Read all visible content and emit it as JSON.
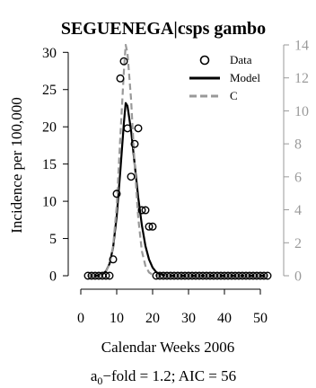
{
  "chart_data": {
    "type": "line",
    "title": "SEGUENEGA|csps gambo",
    "xlabel": "Calendar Weeks 2006",
    "ylabel": "Incidence per 100,000",
    "xlim": [
      0,
      53
    ],
    "ylim": [
      0,
      31
    ],
    "y2lim": [
      0,
      14
    ],
    "x_ticks": [
      0,
      10,
      20,
      30,
      40,
      50
    ],
    "y_ticks": [
      0,
      5,
      10,
      15,
      20,
      25,
      30
    ],
    "y2_ticks": [
      0,
      2,
      4,
      6,
      8,
      10,
      12,
      14
    ],
    "legend": {
      "position": "top-right",
      "entries": [
        "Data",
        "Model",
        "C"
      ]
    },
    "annotation": {
      "prefix": "a",
      "subscript": "0",
      "text": "−fold = 1.2; AIC = 56"
    },
    "series": [
      {
        "name": "Data",
        "style": "points",
        "color": "#000000",
        "x": [
          2,
          3,
          4,
          5,
          6,
          7,
          8,
          9,
          10,
          11,
          12,
          13,
          14,
          15,
          16,
          17,
          18,
          19,
          20,
          21,
          22,
          23,
          24,
          25,
          26,
          27,
          28,
          29,
          30,
          31,
          32,
          33,
          34,
          35,
          36,
          37,
          38,
          39,
          40,
          41,
          42,
          43,
          44,
          45,
          46,
          47,
          48,
          49,
          50,
          51,
          52
        ],
        "values": [
          0,
          0,
          0,
          0,
          0,
          0,
          0,
          2.2,
          11,
          26.5,
          28.8,
          19.8,
          13.3,
          17.7,
          19.8,
          8.8,
          8.8,
          6.6,
          6.6,
          0,
          0,
          0,
          0,
          0,
          0,
          0,
          0,
          0,
          0,
          0,
          0,
          0,
          0,
          0,
          0,
          0,
          0,
          0,
          0,
          0,
          0,
          0,
          0,
          0,
          0,
          0,
          0,
          0,
          0,
          0,
          0
        ]
      },
      {
        "name": "Model",
        "style": "solid",
        "color": "#000000",
        "x": [
          2,
          4,
          5,
          6,
          7,
          8,
          9,
          10,
          11,
          12,
          12.5,
          13,
          14,
          15,
          16,
          17,
          18,
          19,
          20,
          21,
          22,
          23,
          24,
          26,
          28,
          32,
          40,
          52
        ],
        "values": [
          0,
          0,
          0.05,
          0.2,
          0.6,
          1.6,
          3.8,
          8,
          14,
          20.5,
          23.2,
          22.8,
          19.5,
          15,
          10.5,
          6.8,
          4,
          2.2,
          1.1,
          0.5,
          0.2,
          0.08,
          0.03,
          0,
          0,
          0,
          0,
          0
        ]
      },
      {
        "name": "C",
        "style": "dashed",
        "color": "#999999",
        "axis": "right",
        "x": [
          2,
          4,
          6,
          7,
          8,
          9,
          10,
          11,
          12,
          12.5,
          13,
          14,
          15,
          16,
          17,
          18,
          19,
          20,
          21,
          22,
          24,
          28,
          40,
          52
        ],
        "values": [
          0,
          0,
          0.05,
          0.25,
          0.7,
          1.8,
          4.2,
          8.4,
          12.4,
          14,
          13.5,
          10.7,
          6.7,
          3.5,
          1.5,
          0.6,
          0.2,
          0.06,
          0.02,
          0,
          0,
          0,
          0,
          0
        ]
      }
    ]
  }
}
